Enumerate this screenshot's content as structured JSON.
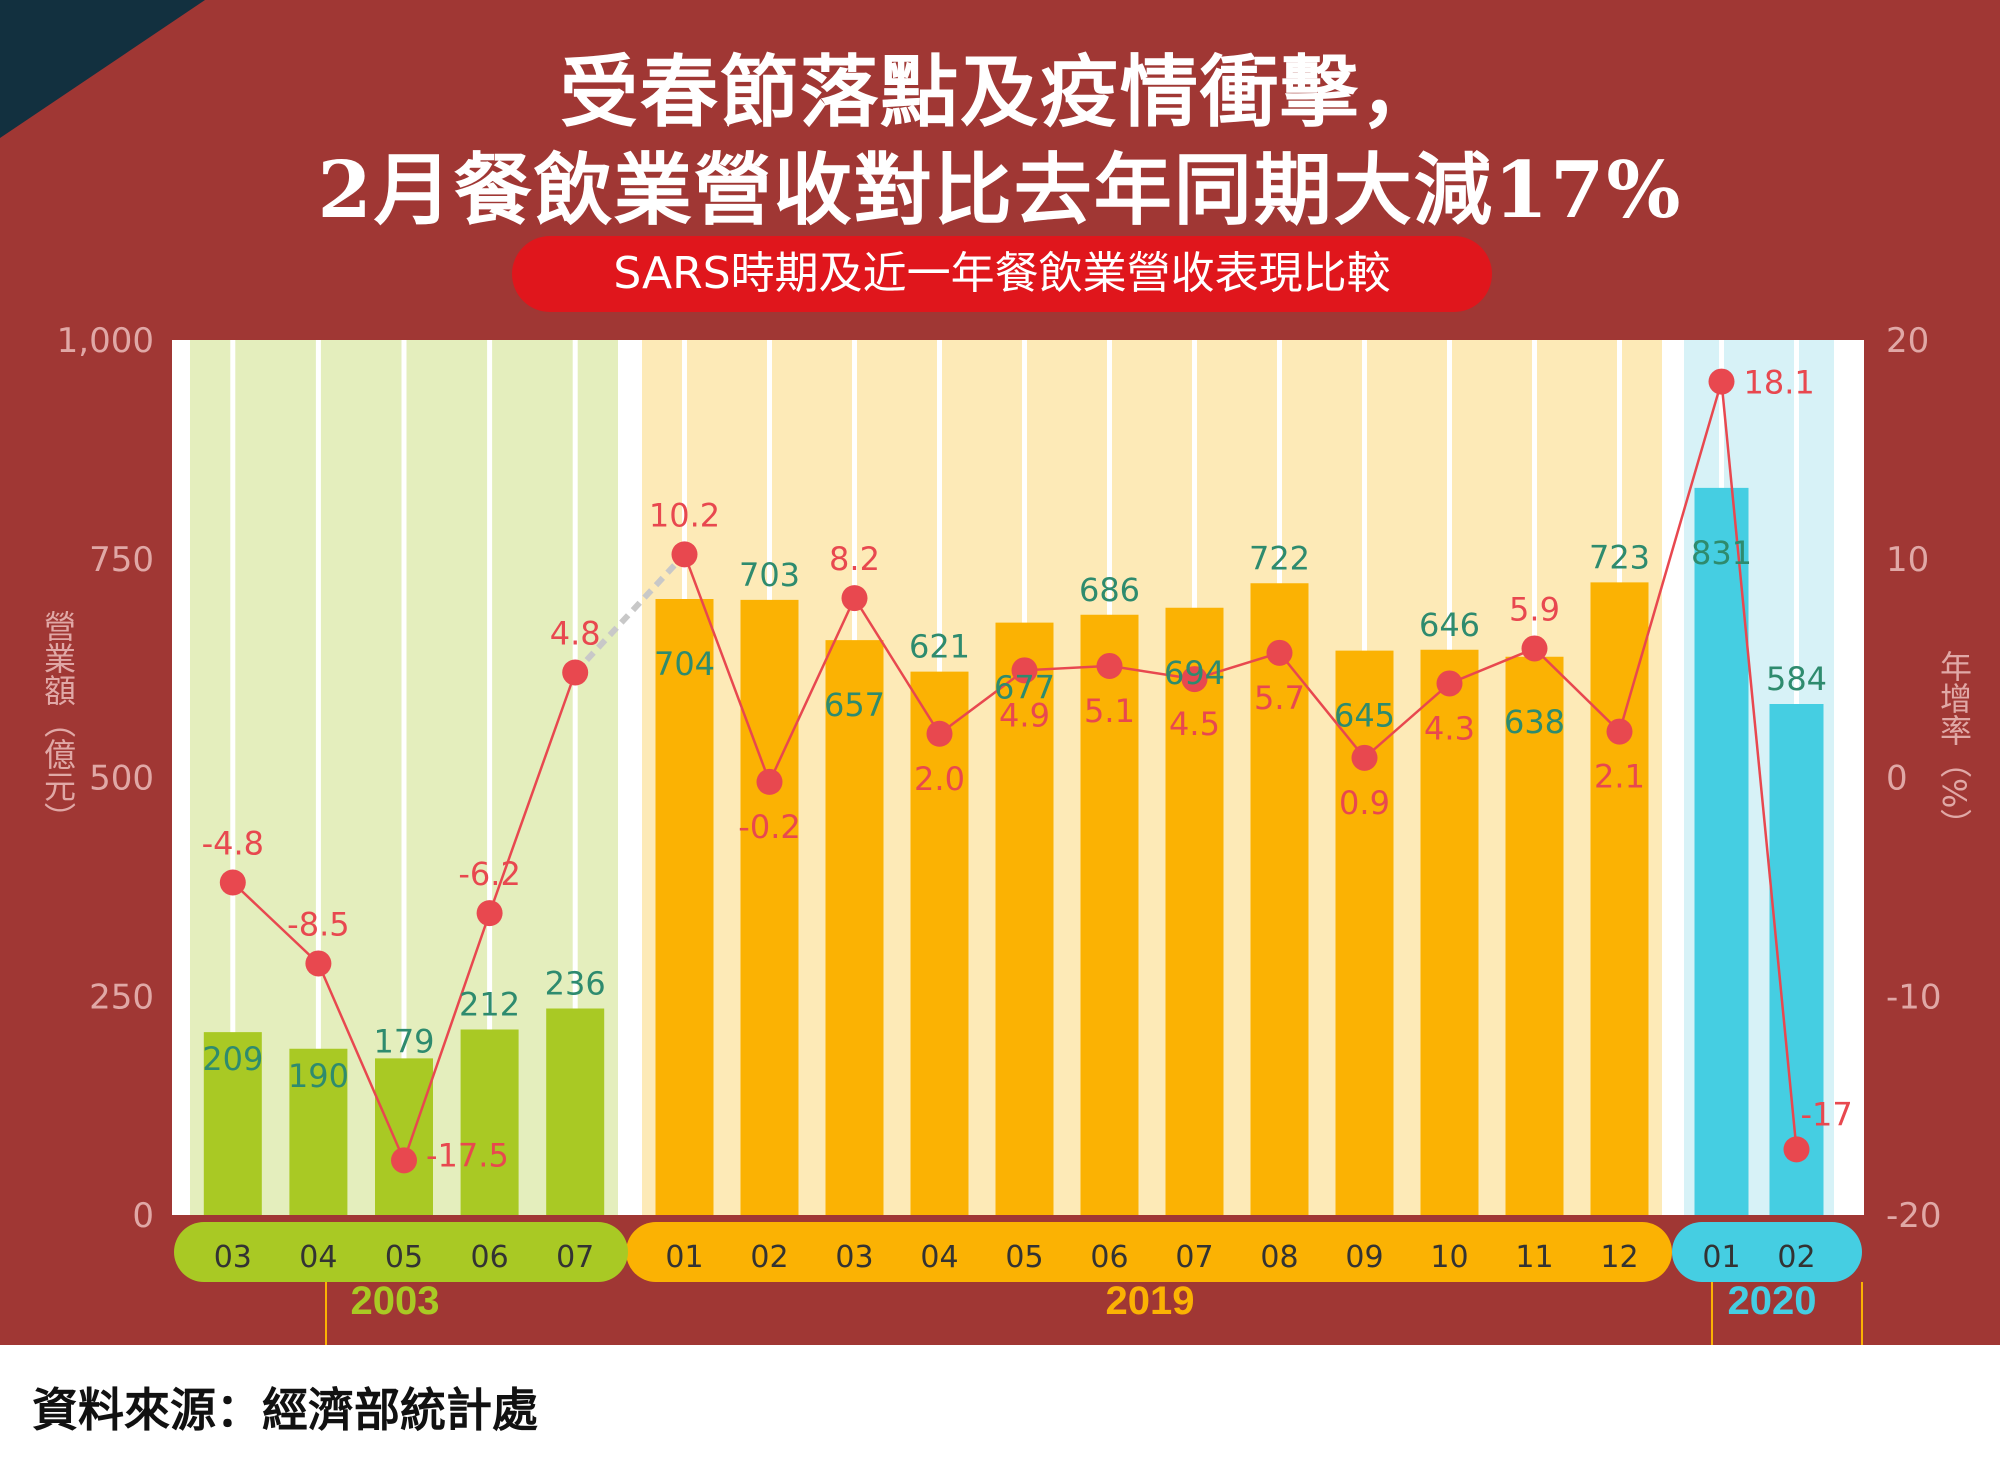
{
  "title_line1": "受春節落點及疫情衝擊，",
  "title_line2": "2月餐飲業營收對比去年同期大減17%",
  "subtitle": "SARS時期及近一年餐飲業營收表現比較",
  "source": "資料來源：經濟部統計處",
  "colors": {
    "background": "#a03734",
    "corner": "#12303f",
    "pill": "#e0161c",
    "line": "#e8484f",
    "value_label": "#2e8b6e",
    "bar_2003": "#a9c924",
    "bar_2019": "#fbb203",
    "bar_2020": "#45cee2",
    "band_2003": "#e4eebd",
    "band_2019": "#fdeab7",
    "band_2020": "#d7f2f7"
  },
  "chart_data": {
    "type": "bar+line",
    "ylabel_left": "營業額（億元）",
    "ylabel_right": "年增率（%）",
    "ylim_left": [
      0,
      1000
    ],
    "yticks_left": [
      "0",
      "250",
      "500",
      "750",
      "1,000"
    ],
    "ylim_right": [
      -20,
      20
    ],
    "yticks_right": [
      "-20",
      "-10",
      "0",
      "10",
      "20"
    ],
    "groups": [
      {
        "year": "2003",
        "months": [
          "03",
          "04",
          "05",
          "06",
          "07"
        ],
        "revenue": [
          209,
          190,
          179,
          212,
          236
        ],
        "growth": [
          -4.8,
          -8.5,
          -17.5,
          -6.2,
          4.8
        ],
        "growth_labels": [
          "-4.8",
          "-8.5",
          "-17.5",
          "-6.2",
          "4.8"
        ]
      },
      {
        "year": "2019",
        "months": [
          "01",
          "02",
          "03",
          "04",
          "05",
          "06",
          "07",
          "08",
          "09",
          "10",
          "11",
          "12"
        ],
        "revenue": [
          704,
          703,
          657,
          621,
          677,
          686,
          694,
          722,
          645,
          646,
          638,
          723
        ],
        "growth": [
          10.2,
          -0.2,
          8.2,
          2.0,
          4.9,
          5.1,
          4.5,
          5.7,
          0.9,
          4.3,
          5.9,
          2.1
        ],
        "growth_labels": [
          "10.2",
          "-0.2",
          "8.2",
          "2.0",
          "4.9",
          "5.1",
          "4.5",
          "5.7",
          "0.9",
          "4.3",
          "5.9",
          "2.1"
        ]
      },
      {
        "year": "2020",
        "months": [
          "01",
          "02"
        ],
        "revenue": [
          831,
          584
        ],
        "growth": [
          18.1,
          -17
        ],
        "growth_labels": [
          "18.1",
          "-17"
        ]
      }
    ]
  }
}
